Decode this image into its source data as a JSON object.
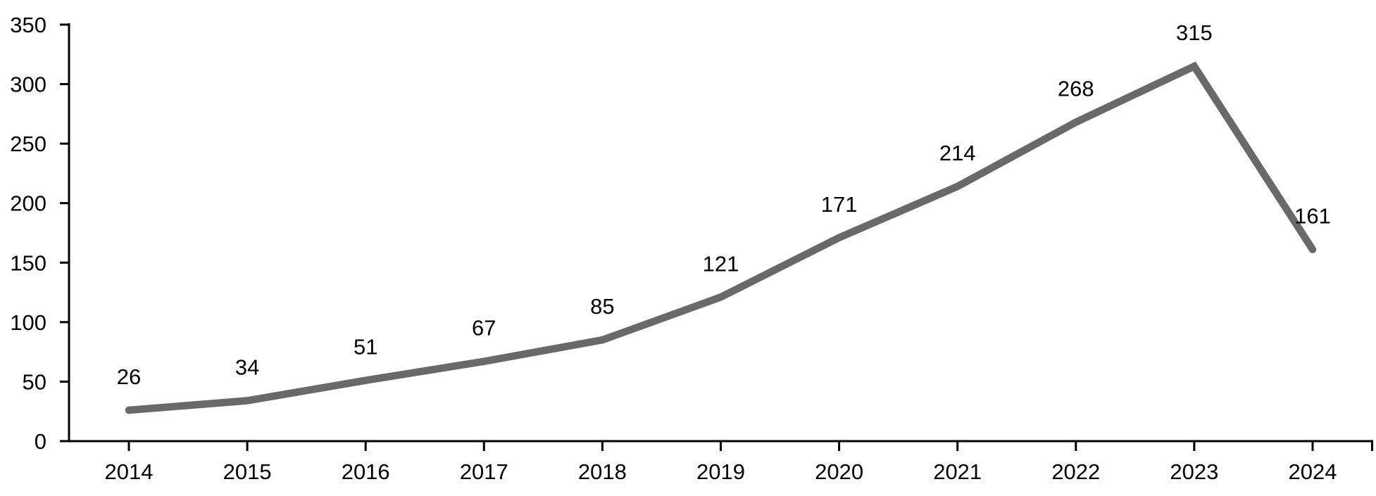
{
  "chart_data": {
    "type": "line",
    "categories": [
      "2014",
      "2015",
      "2016",
      "2017",
      "2018",
      "2019",
      "2020",
      "2021",
      "2022",
      "2023",
      "2024"
    ],
    "values": [
      26,
      34,
      51,
      67,
      85,
      121,
      171,
      214,
      268,
      315,
      161
    ],
    "data_labels": [
      "26",
      "34",
      "51",
      "67",
      "85",
      "121",
      "171",
      "214",
      "268",
      "315",
      "161"
    ],
    "title": "",
    "xlabel": "",
    "ylabel": "",
    "ylim": [
      0,
      350
    ],
    "yticks": [
      0,
      50,
      100,
      150,
      200,
      250,
      300,
      350
    ],
    "ytick_labels": [
      "0",
      "50",
      "100",
      "150",
      "200",
      "250",
      "300",
      "350"
    ],
    "grid": false,
    "legend": null,
    "show_point_markers": false,
    "colors": {
      "line": "#696969",
      "axis": "#000000",
      "text": "#000000",
      "background": "#ffffff"
    }
  }
}
